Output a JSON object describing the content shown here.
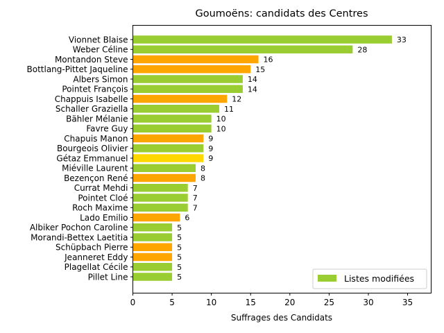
{
  "chart_data": {
    "type": "bar",
    "orientation": "horizontal",
    "title": "Goumoëns: candidats des Centres",
    "xlabel": "Suffrages des Candidats",
    "ylabel": "",
    "xlim": [
      0,
      38
    ],
    "xticks": [
      0,
      5,
      10,
      15,
      20,
      25,
      30,
      35
    ],
    "grid": false,
    "legend": {
      "placement": "bottom-right",
      "entries": [
        {
          "label": "Listes modifiées",
          "color": "#9acd32"
        }
      ]
    },
    "colors": {
      "green": "#9acd32",
      "orange": "#ffa500",
      "gold": "#ffd700"
    },
    "bars": [
      {
        "name": "Vionnet Blaise",
        "value": 33,
        "color": "#9acd32"
      },
      {
        "name": "Weber Céline",
        "value": 28,
        "color": "#9acd32"
      },
      {
        "name": "Montandon Steve",
        "value": 16,
        "color": "#ffa500"
      },
      {
        "name": "Bottlang-Pittet Jaqueline",
        "value": 15,
        "color": "#ffa500"
      },
      {
        "name": "Albers Simon",
        "value": 14,
        "color": "#9acd32"
      },
      {
        "name": "Pointet François",
        "value": 14,
        "color": "#9acd32"
      },
      {
        "name": "Chappuis Isabelle",
        "value": 12,
        "color": "#ffa500"
      },
      {
        "name": "Schaller Graziella",
        "value": 11,
        "color": "#9acd32"
      },
      {
        "name": "Bähler Mélanie",
        "value": 10,
        "color": "#9acd32"
      },
      {
        "name": "Favre Guy",
        "value": 10,
        "color": "#9acd32"
      },
      {
        "name": "Chapuis Manon",
        "value": 9,
        "color": "#ffa500"
      },
      {
        "name": "Bourgeois Olivier",
        "value": 9,
        "color": "#9acd32"
      },
      {
        "name": "Gétaz Emmanuel",
        "value": 9,
        "color": "#ffd700"
      },
      {
        "name": "Miéville Laurent",
        "value": 8,
        "color": "#9acd32"
      },
      {
        "name": "Bezençon René",
        "value": 8,
        "color": "#ffa500"
      },
      {
        "name": "Currat Mehdi",
        "value": 7,
        "color": "#9acd32"
      },
      {
        "name": "Pointet Cloé",
        "value": 7,
        "color": "#9acd32"
      },
      {
        "name": "Roch Maxime",
        "value": 7,
        "color": "#9acd32"
      },
      {
        "name": "Lado Emilio",
        "value": 6,
        "color": "#ffa500"
      },
      {
        "name": "Albiker Pochon Caroline",
        "value": 5,
        "color": "#9acd32"
      },
      {
        "name": "Morandi-Bettex Laetitia",
        "value": 5,
        "color": "#9acd32"
      },
      {
        "name": "Schüpbach Pierre",
        "value": 5,
        "color": "#ffa500"
      },
      {
        "name": "Jeanneret Eddy",
        "value": 5,
        "color": "#ffa500"
      },
      {
        "name": "Plagellat Cécile",
        "value": 5,
        "color": "#9acd32"
      },
      {
        "name": "Pillet Line",
        "value": 5,
        "color": "#9acd32"
      }
    ]
  }
}
